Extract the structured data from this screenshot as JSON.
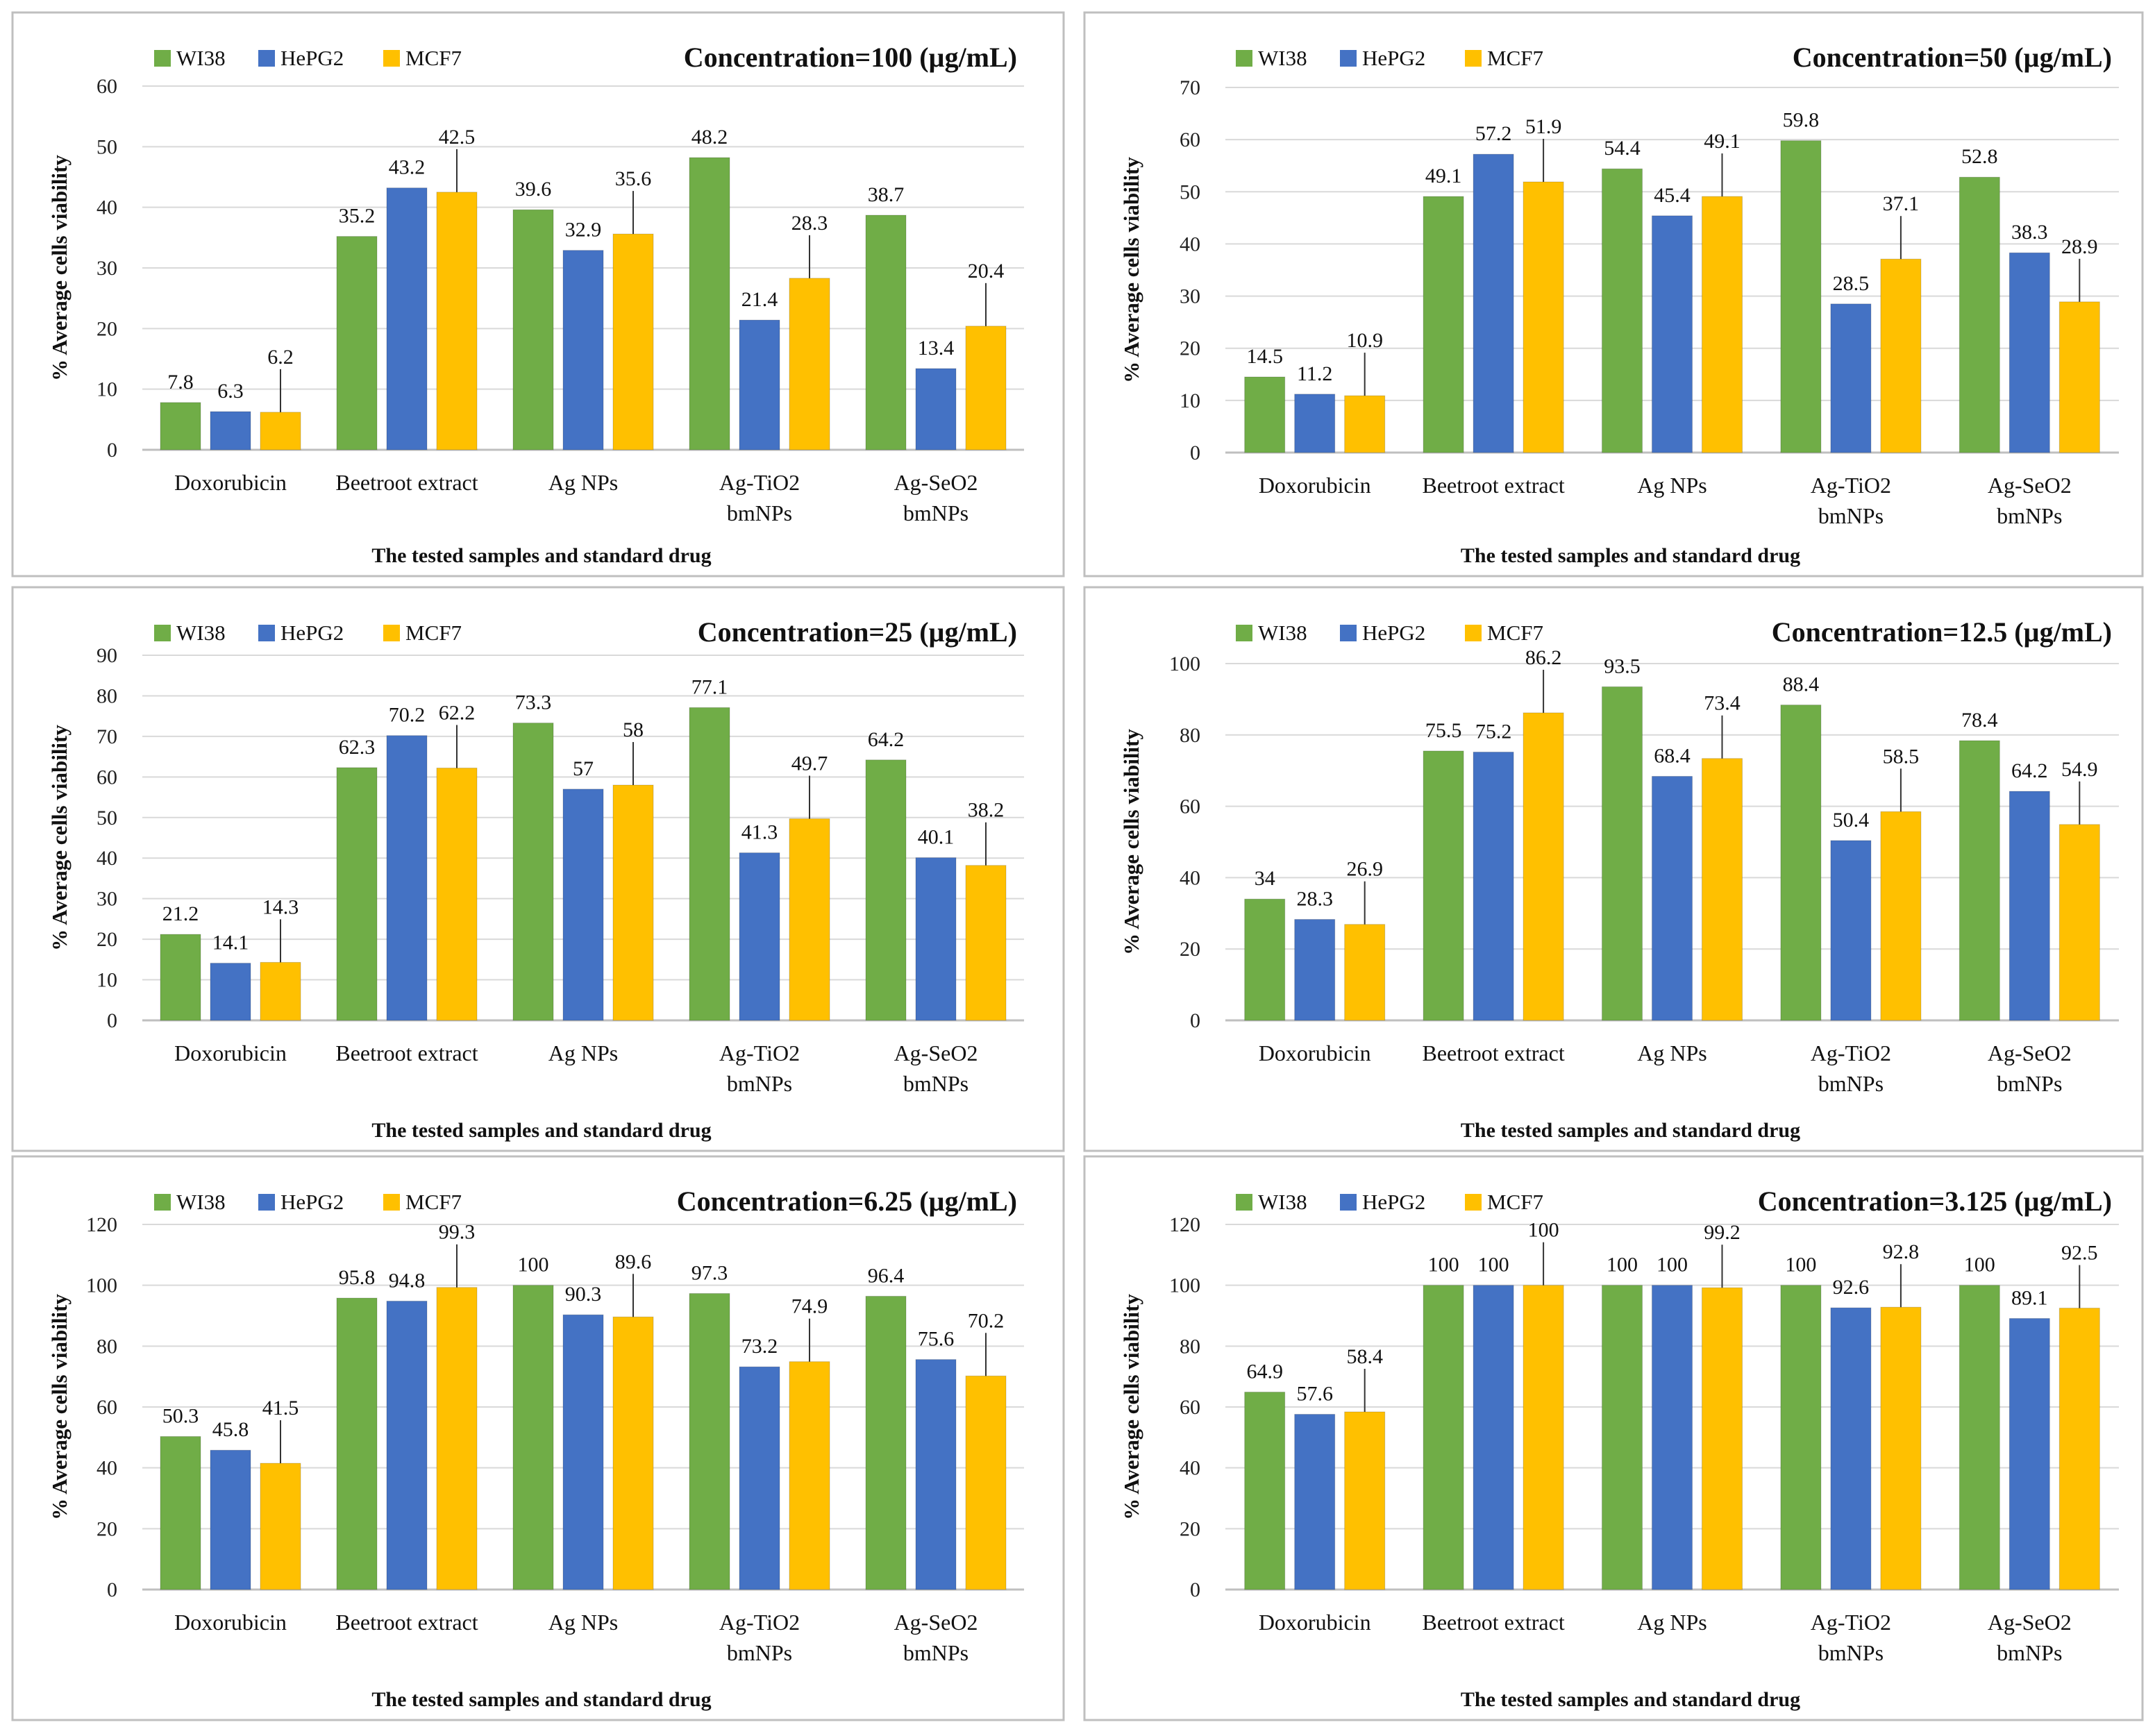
{
  "figure": {
    "colors": {
      "WI38": "#70ad47",
      "HePG2": "#4472c4",
      "MCF7": "#ffc000",
      "gridline": "#d9d9d9",
      "panel_border": "#bfbfbf"
    },
    "legend_icon": "square-marker"
  },
  "chart_data": [
    {
      "type": "bar",
      "title": "Concentration=100 (µg/mL)",
      "xlabel": "The tested samples and standard drug",
      "ylabel": "% Average cells viability",
      "ylim": [
        0,
        60
      ],
      "ytick_step": 10,
      "grid": true,
      "legend_position": "top-left",
      "categories": [
        [
          "Doxorubicin"
        ],
        [
          "Beetroot extract"
        ],
        [
          "Ag NPs"
        ],
        [
          "Ag-TiO2",
          "bmNPs"
        ],
        [
          "Ag-SeO2",
          "bmNPs"
        ]
      ],
      "series": [
        {
          "name": "WI38",
          "values": [
            7.8,
            35.2,
            39.6,
            48.2,
            38.7
          ]
        },
        {
          "name": "HePG2",
          "values": [
            6.3,
            43.2,
            32.9,
            21.4,
            13.4
          ]
        },
        {
          "name": "MCF7",
          "values": [
            6.2,
            42.5,
            35.6,
            28.3,
            20.4
          ]
        }
      ]
    },
    {
      "type": "bar",
      "title": "Concentration=50 (µg/mL)",
      "xlabel": "The tested samples and standard drug",
      "ylabel": "% Average cells viability",
      "ylim": [
        0,
        70
      ],
      "ytick_step": 10,
      "grid": true,
      "legend_position": "top-left",
      "categories": [
        [
          "Doxorubicin"
        ],
        [
          "Beetroot extract"
        ],
        [
          "Ag NPs"
        ],
        [
          "Ag-TiO2",
          "bmNPs"
        ],
        [
          "Ag-SeO2",
          "bmNPs"
        ]
      ],
      "series": [
        {
          "name": "WI38",
          "values": [
            14.5,
            49.1,
            54.4,
            59.8,
            52.8
          ]
        },
        {
          "name": "HePG2",
          "values": [
            11.2,
            57.2,
            45.4,
            28.5,
            38.3
          ]
        },
        {
          "name": "MCF7",
          "values": [
            10.9,
            51.9,
            49.1,
            37.1,
            28.9
          ]
        }
      ]
    },
    {
      "type": "bar",
      "title": "Concentration=25 (µg/mL)",
      "xlabel": "The tested samples and standard drug",
      "ylabel": "% Average cells viability",
      "ylim": [
        0,
        90
      ],
      "ytick_step": 10,
      "grid": true,
      "legend_position": "top-left",
      "categories": [
        [
          "Doxorubicin"
        ],
        [
          "Beetroot extract"
        ],
        [
          "Ag NPs"
        ],
        [
          "Ag-TiO2",
          "bmNPs"
        ],
        [
          "Ag-SeO2",
          "bmNPs"
        ]
      ],
      "series": [
        {
          "name": "WI38",
          "values": [
            21.2,
            62.3,
            73.3,
            77.1,
            64.2
          ]
        },
        {
          "name": "HePG2",
          "values": [
            14.1,
            70.2,
            57,
            41.3,
            40.1
          ]
        },
        {
          "name": "MCF7",
          "values": [
            14.3,
            62.2,
            58,
            49.7,
            38.2
          ]
        }
      ]
    },
    {
      "type": "bar",
      "title": "Concentration=12.5 (µg/mL)",
      "xlabel": "The tested samples and standard drug",
      "ylabel": "% Average cells viability",
      "ylim": [
        0,
        100
      ],
      "ytick_step": 20,
      "grid": true,
      "legend_position": "top-left",
      "categories": [
        [
          "Doxorubicin"
        ],
        [
          "Beetroot extract"
        ],
        [
          "Ag NPs"
        ],
        [
          "Ag-TiO2",
          "bmNPs"
        ],
        [
          "Ag-SeO2",
          "bmNPs"
        ]
      ],
      "series": [
        {
          "name": "WI38",
          "values": [
            34,
            75.5,
            93.5,
            88.4,
            78.4
          ]
        },
        {
          "name": "HePG2",
          "values": [
            28.3,
            75.2,
            68.4,
            50.4,
            64.2
          ]
        },
        {
          "name": "MCF7",
          "values": [
            26.9,
            86.2,
            73.4,
            58.5,
            54.9
          ]
        }
      ]
    },
    {
      "type": "bar",
      "title": "Concentration=6.25 (µg/mL)",
      "xlabel": "The tested samples and standard drug",
      "ylabel": "% Average cells viability",
      "ylim": [
        0,
        120
      ],
      "ytick_step": 20,
      "grid": true,
      "legend_position": "top-left",
      "categories": [
        [
          "Doxorubicin"
        ],
        [
          "Beetroot extract"
        ],
        [
          "Ag NPs"
        ],
        [
          "Ag-TiO2",
          "bmNPs"
        ],
        [
          "Ag-SeO2",
          "bmNPs"
        ]
      ],
      "series": [
        {
          "name": "WI38",
          "values": [
            50.3,
            95.8,
            100,
            97.3,
            96.4
          ]
        },
        {
          "name": "HePG2",
          "values": [
            45.8,
            94.8,
            90.3,
            73.2,
            75.6
          ]
        },
        {
          "name": "MCF7",
          "values": [
            41.5,
            99.3,
            89.6,
            74.9,
            70.2
          ]
        }
      ]
    },
    {
      "type": "bar",
      "title": "Concentration=3.125 (µg/mL)",
      "xlabel": "The tested samples and standard drug",
      "ylabel": "% Average cells viability",
      "ylim": [
        0,
        120
      ],
      "ytick_step": 20,
      "grid": true,
      "legend_position": "top-left",
      "categories": [
        [
          "Doxorubicin"
        ],
        [
          "Beetroot extract"
        ],
        [
          "Ag NPs"
        ],
        [
          "Ag-TiO2",
          "bmNPs"
        ],
        [
          "Ag-SeO2",
          "bmNPs"
        ]
      ],
      "series": [
        {
          "name": "WI38",
          "values": [
            64.9,
            100,
            100,
            100,
            100
          ]
        },
        {
          "name": "HePG2",
          "values": [
            57.6,
            100,
            100,
            92.6,
            89.1
          ]
        },
        {
          "name": "MCF7",
          "values": [
            58.4,
            100,
            99.2,
            92.8,
            92.5
          ]
        }
      ]
    }
  ]
}
